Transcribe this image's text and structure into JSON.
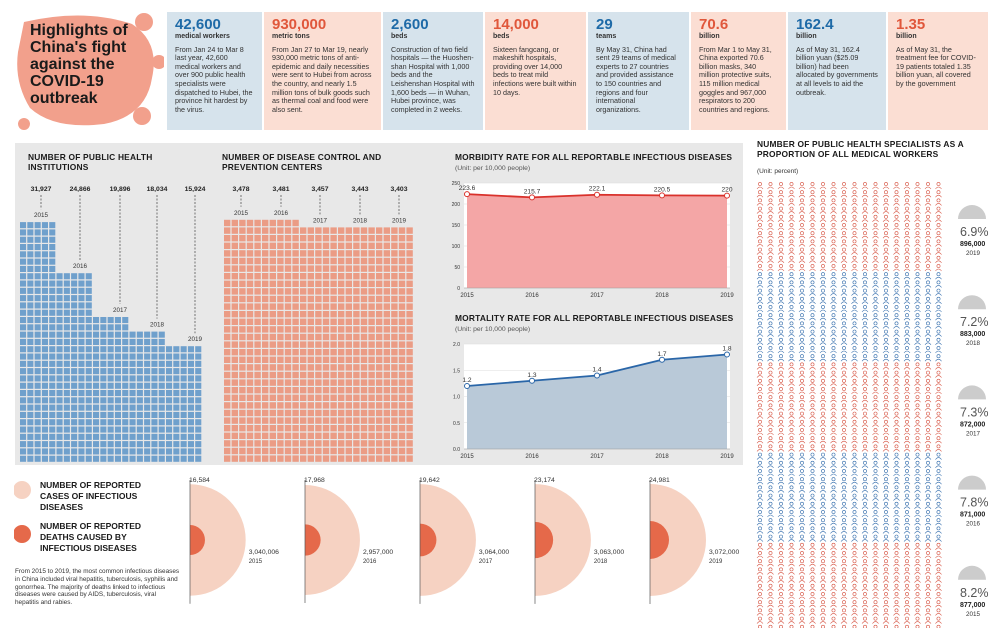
{
  "header": {
    "title": "Highlights of China's fight against the COVID-19 outbreak"
  },
  "stats": [
    {
      "value": "42,600",
      "unit": "medical workers",
      "text": "From Jan 24 to Mar 8 last year, 42,600 medical workers and over 900 public health specialists were dispatched to Hubei, the province hit hardest by the virus.",
      "color": "blue"
    },
    {
      "value": "930,000",
      "unit": "metric tons",
      "text": "From Jan 27 to Mar 19, nearly 930,000 metric tons of anti-epidemic and daily necessities were sent to Hubei from across the country, and nearly 1.5 million tons of bulk goods such as thermal coal and food were also sent.",
      "color": "pink"
    },
    {
      "value": "2,600",
      "unit": "beds",
      "text": "Construction of two field hospitals — the Huoshen-shan Hospital with 1,000 beds and the Leishenshan Hospital with 1,600 beds — in Wuhan, Hubei province, was completed in 2 weeks.",
      "color": "blue"
    },
    {
      "value": "14,000",
      "unit": "beds",
      "text": "Sixteen fangcang, or makeshift hospitals, providing over 14,000 beds to treat mild infections were built within 10 days.",
      "color": "pink"
    },
    {
      "value": "29",
      "unit": "teams",
      "text": "By May 31, China had sent 29 teams of medical experts to 27 countries and provided assistance to 150 countries and regions and four international organizations.",
      "color": "blue"
    },
    {
      "value": "70.6",
      "unit": "billion",
      "text": "From Mar 1 to May 31, China exported 70.6 billion masks, 340 million protective suits, 115 million medical goggles and 967,000 respirators to 200 countries and regions.",
      "color": "pink"
    },
    {
      "value": "162.4",
      "unit": "billion",
      "text": "As of May 31, 162.4 billion yuan ($25.09 billion) had been allocated by governments at all levels to aid the outbreak.",
      "color": "blue"
    },
    {
      "value": "1.35",
      "unit": "billion",
      "text": "As of May 31, the treatment fee for COVID-19 patients totaled 1.35 billion yuan, all covered by the government",
      "color": "pink"
    }
  ],
  "colors": {
    "blue": "#6fa0cc",
    "pink": "#eb9c85",
    "red": "#d9312b",
    "darkblue": "#2a66a8",
    "orange": "#e5694a"
  },
  "chart_data": [
    {
      "type": "bar",
      "title": "NUMBER OF PUBLIC HEALTH INSTITUTIONS",
      "categories": [
        "2015",
        "2016",
        "2017",
        "2018",
        "2019"
      ],
      "values": [
        31927,
        24866,
        19896,
        18034,
        15924
      ],
      "labels": [
        "31,927",
        "24,866",
        "19,896",
        "18,034",
        "15,924"
      ]
    },
    {
      "type": "bar",
      "title": "NUMBER OF DISEASE CONTROL AND PREVENTION CENTERS",
      "categories": [
        "2015",
        "2016",
        "2017",
        "2018",
        "2019"
      ],
      "values": [
        3478,
        3481,
        3457,
        3443,
        3403
      ],
      "labels": [
        "3,478",
        "3,481",
        "3,457",
        "3,443",
        "3,403"
      ]
    },
    {
      "type": "area",
      "title": "MORBIDITY RATE FOR ALL REPORTABLE INFECTIOUS DISEASES",
      "unit": "(Unit: per 10,000 people)",
      "x": [
        "2015",
        "2016",
        "2017",
        "2018",
        "2019"
      ],
      "values": [
        223.6,
        215.7,
        222.1,
        220.5,
        220
      ],
      "labels": [
        "223.6",
        "215.7",
        "222.1",
        "220.5",
        "220"
      ],
      "ylim": [
        0,
        250
      ],
      "yticks": [
        "0",
        "50",
        "100",
        "150",
        "200",
        "250"
      ]
    },
    {
      "type": "area",
      "title": "MORTALITY RATE FOR ALL REPORTABLE INFECTIOUS DISEASES",
      "unit": "(Unit: per 10,000 people)",
      "x": [
        "2015",
        "2016",
        "2017",
        "2018",
        "2019"
      ],
      "values": [
        1.2,
        1.3,
        1.4,
        1.7,
        1.8
      ],
      "labels": [
        "1.2",
        "1.3",
        "1.4",
        "1.7",
        "1.8"
      ],
      "ylim": [
        0,
        2.0
      ],
      "yticks": [
        "0.0",
        "0.5",
        "1.0",
        "1.5",
        "2.0"
      ]
    },
    {
      "type": "pie",
      "title": "NUMBER OF REPORTED CASES / DEATHS OF INFECTIOUS DISEASES",
      "x": [
        "2015",
        "2016",
        "2017",
        "2018",
        "2019"
      ],
      "cases": [
        3040006,
        2957000,
        3064000,
        3063000,
        3072000
      ],
      "cases_labels": [
        "3,040,006",
        "2,957,000",
        "3,064,000",
        "3,063,000",
        "3,072,000"
      ],
      "deaths": [
        16584,
        17968,
        19642,
        23174,
        24981
      ],
      "deaths_labels": [
        "16,584",
        "17,968",
        "19,642",
        "23,174",
        "24,981"
      ]
    },
    {
      "type": "bar",
      "title": "NUMBER OF PUBLIC HEALTH SPECIALISTS AS A PROPORTION OF ALL MEDICAL WORKERS",
      "unit": "(Unit: percent)",
      "categories": [
        "2019",
        "2018",
        "2017",
        "2016",
        "2015"
      ],
      "values": [
        6.9,
        7.2,
        7.3,
        7.8,
        8.2
      ],
      "pct_labels": [
        "6.9%",
        "7.2%",
        "7.3%",
        "7.8%",
        "8.2%"
      ],
      "num_labels": [
        "896,000",
        "883,000",
        "872,000",
        "871,000",
        "877,000"
      ]
    }
  ],
  "legend": {
    "cases": "NUMBER OF REPORTED CASES OF INFECTIOUS DISEASES",
    "deaths": "NUMBER OF REPORTED DEATHS CAUSED BY INFECTIOUS DISEASES"
  },
  "note": "From 2015 to 2019, the most common infectious diseases in China included viral hepatitis, tuberculosis, syphilis and gonorrhea. The majority of deaths linked to infectious diseases were caused by AIDS, tuberculosis, viral hepatitis and rabies."
}
